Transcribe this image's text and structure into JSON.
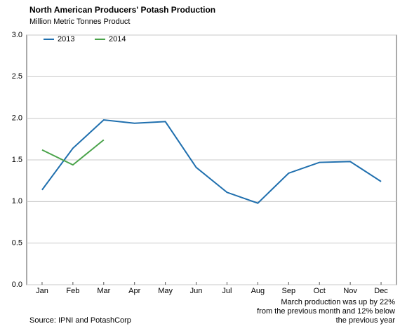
{
  "chart_data": {
    "type": "line",
    "title": "North American Producers' Potash Production",
    "subtitle": "Million Metric Tonnes Product",
    "categories": [
      "Jan",
      "Feb",
      "Mar",
      "Apr",
      "May",
      "Jun",
      "Jul",
      "Aug",
      "Sep",
      "Oct",
      "Nov",
      "Dec"
    ],
    "series": [
      {
        "name": "2013",
        "color": "#1f6fae",
        "values": [
          1.14,
          1.64,
          1.98,
          1.94,
          1.96,
          1.41,
          1.11,
          0.98,
          1.34,
          1.47,
          1.48,
          1.24
        ]
      },
      {
        "name": "2014",
        "color": "#4aa34a",
        "values": [
          1.62,
          1.44,
          1.74,
          null,
          null,
          null,
          null,
          null,
          null,
          null,
          null,
          null
        ]
      }
    ],
    "ylim": [
      0,
      3
    ],
    "yticks": [
      {
        "value": 0,
        "label": "0.0"
      },
      0.5,
      {
        "value": 1,
        "label": "1.0"
      },
      1.5,
      {
        "value": 2,
        "label": "2.0"
      },
      2.5,
      {
        "value": 3,
        "label": "3.0"
      }
    ],
    "grid": true,
    "legend": "top-left",
    "annotation": [
      "March production was up by 22%",
      "from the previous month and 12% below",
      "the previous year"
    ],
    "source": "Source: IPNI and PotashCorp"
  }
}
